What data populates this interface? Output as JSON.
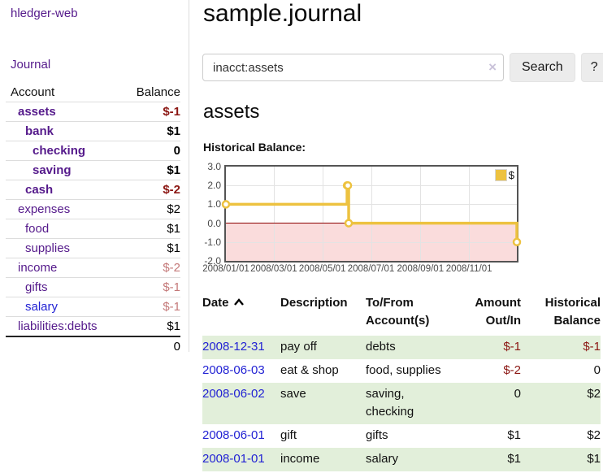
{
  "app": {
    "brand": "hledger-web"
  },
  "sidebar": {
    "nav": {
      "journal_label": "Journal"
    },
    "accounts": {
      "headers": {
        "account": "Account",
        "balance": "Balance"
      },
      "rows": [
        {
          "account": "assets",
          "balance": "$-1"
        },
        {
          "account": "bank",
          "balance": "$1"
        },
        {
          "account": "checking",
          "balance": "0"
        },
        {
          "account": "saving",
          "balance": "$1"
        },
        {
          "account": "cash",
          "balance": "$-2"
        },
        {
          "account": "expenses",
          "balance": "$2"
        },
        {
          "account": "food",
          "balance": "$1"
        },
        {
          "account": "supplies",
          "balance": "$1"
        },
        {
          "account": "income",
          "balance": "$-2"
        },
        {
          "account": "gifts",
          "balance": "$-1"
        },
        {
          "account": "salary",
          "balance": "$-1"
        },
        {
          "account": "liabilities:debts",
          "balance": "$1"
        }
      ],
      "total": "0"
    }
  },
  "main": {
    "title": "sample.journal",
    "search": {
      "value": "inacct:assets",
      "clear_icon": "×",
      "button_label": "Search",
      "help_label": "?"
    },
    "account_heading": "assets",
    "chart_label": "Historical Balance:"
  },
  "chart_data": {
    "type": "line",
    "step": true,
    "title": "Historical Balance:",
    "series": [
      {
        "name": "$",
        "color": "#EDC240",
        "points": [
          {
            "date": "2008-01-01",
            "value": 1
          },
          {
            "date": "2008-06-01",
            "value": 2
          },
          {
            "date": "2008-06-02",
            "value": 2
          },
          {
            "date": "2008-06-03",
            "value": 0
          },
          {
            "date": "2008-12-31",
            "value": -1
          }
        ]
      }
    ],
    "x_range": [
      "2008-01-01",
      "2008-12-31"
    ],
    "x_ticks": [
      {
        "date": "2008-01-01",
        "label": "2008/01/01"
      },
      {
        "date": "2008-03-01",
        "label": "2008/03/01"
      },
      {
        "date": "2008-05-01",
        "label": "2008/05/01"
      },
      {
        "date": "2008-07-01",
        "label": "2008/07/01"
      },
      {
        "date": "2008-09-01",
        "label": "2008/09/01"
      },
      {
        "date": "2008-11-01",
        "label": "2008/11/01"
      }
    ],
    "ylim": [
      -2,
      3
    ],
    "y_ticks": [
      {
        "value": 3,
        "label": "3.0"
      },
      {
        "value": 2,
        "label": "2.0"
      },
      {
        "value": 1,
        "label": "1.0"
      },
      {
        "value": 0,
        "label": "0.0"
      },
      {
        "value": -1,
        "label": "-1.0"
      },
      {
        "value": -2,
        "label": "-2.0"
      }
    ],
    "grid": true,
    "legend": {
      "position": "top-right",
      "entries": [
        {
          "label": "$",
          "color": "#EDC240"
        }
      ]
    },
    "negative_region_fill": "#FADCDC",
    "zero_line_color": "#8B0000"
  },
  "register": {
    "headers": {
      "date": "Date",
      "description": "Description",
      "accounts": "To/From Account(s)",
      "amount": "Amount Out/In",
      "balance": "Historical Balance"
    },
    "rows": [
      {
        "date": "2008-12-31",
        "description": "pay off",
        "accounts": "debts",
        "amount": "$-1",
        "balance": "$-1"
      },
      {
        "date": "2008-06-03",
        "description": "eat & shop",
        "accounts": "food, supplies",
        "amount": "$-2",
        "balance": "0"
      },
      {
        "date": "2008-06-02",
        "description": "save",
        "accounts": "saving, checking",
        "amount": "0",
        "balance": "$2"
      },
      {
        "date": "2008-06-01",
        "description": "gift",
        "accounts": "gifts",
        "amount": "$1",
        "balance": "$2"
      },
      {
        "date": "2008-01-01",
        "description": "income",
        "accounts": "salary",
        "amount": "$1",
        "balance": "$1"
      }
    ]
  }
}
